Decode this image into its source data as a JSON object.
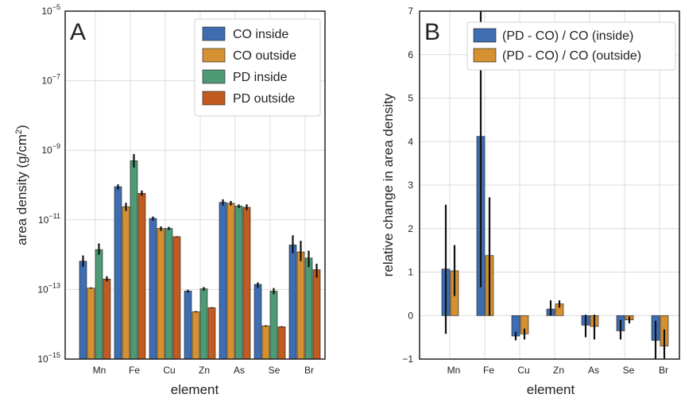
{
  "chart_data": [
    {
      "panel": "A",
      "type": "bar",
      "scale": "log",
      "categories": [
        "Mn",
        "Fe",
        "Cu",
        "Zn",
        "As",
        "Se",
        "Br"
      ],
      "ylabel_main": "area density (g/cm",
      "ylabel_sup": "2",
      "ylabel_close": ")",
      "xlabel": "element",
      "ylim_exp": [
        -15,
        -5
      ],
      "yticks_exp": [
        -15,
        -13,
        -11,
        -9,
        -7,
        -5
      ],
      "legend_position": "upper right",
      "grid": true,
      "series": [
        {
          "name": "CO inside",
          "color": "#3e6db2",
          "values": [
            6.5e-13,
            9e-11,
            1.1e-11,
            9e-14,
            3.2e-11,
            1.4e-13,
            1.9e-12
          ],
          "err_low": [
            4.5e-13,
            7.5e-11,
            9.5e-12,
            8.2e-14,
            2.6e-11,
            1.1e-13,
            1.1e-12
          ],
          "err_high": [
            9.5e-13,
            1.05e-10,
            1.25e-11,
            9.8e-14,
            3.9e-11,
            1.6e-13,
            3.6e-12
          ]
        },
        {
          "name": "CO outside",
          "color": "#d49031",
          "values": [
            1.1e-13,
            2.4e-11,
            5.7e-12,
            2.3e-14,
            3e-11,
            9e-15,
            1.2e-12
          ],
          "err_low": [
            1.05e-13,
            1.8e-11,
            4.8e-12,
            2.2e-14,
            2.6e-11,
            8.6e-15,
            6.5e-13
          ],
          "err_high": [
            1.15e-13,
            3.1e-11,
            6.5e-12,
            2.4e-14,
            3.5e-11,
            9.4e-15,
            2.5e-12
          ]
        },
        {
          "name": "PD inside",
          "color": "#4e9a74",
          "values": [
            1.4e-12,
            5e-10,
            5.7e-12,
            1.05e-13,
            2.5e-11,
            9e-14,
            8e-13
          ],
          "err_low": [
            1e-12,
            3.2e-10,
            5.1e-12,
            9.2e-14,
            2.2e-11,
            7.3e-14,
            4.4e-13
          ],
          "err_high": [
            2.1e-12,
            7.8e-10,
            6.3e-12,
            1.18e-13,
            2.8e-11,
            1.1e-13,
            1.3e-12
          ]
        },
        {
          "name": "PD outside",
          "color": "#c25b1f",
          "values": [
            2e-13,
            5.8e-11,
            3.3e-12,
            3e-14,
            2.3e-11,
            8.5e-15,
            3.7e-13
          ],
          "err_low": [
            1.7e-13,
            4.9e-11,
            3.2e-12,
            2.9e-14,
            1.9e-11,
            8.2e-15,
            2.2e-13
          ],
          "err_high": [
            2.4e-13,
            7e-11,
            3.4e-12,
            3.1e-14,
            2.8e-11,
            8.8e-15,
            5.5e-13
          ]
        }
      ]
    },
    {
      "panel": "B",
      "type": "bar",
      "scale": "linear",
      "categories": [
        "Mn",
        "Fe",
        "Cu",
        "Zn",
        "As",
        "Se",
        "Br"
      ],
      "ylabel": "relative change in area density",
      "xlabel": "element",
      "ylim": [
        -1,
        7
      ],
      "yticks": [
        -1,
        0,
        1,
        2,
        3,
        4,
        5,
        6,
        7
      ],
      "legend_position": "upper right",
      "grid": true,
      "series": [
        {
          "name": "(PD - CO) / CO (inside)",
          "color": "#3e6db2",
          "values": [
            1.07,
            4.12,
            -0.47,
            0.15,
            -0.22,
            -0.35,
            -0.57
          ],
          "err_low": [
            -0.42,
            0.65,
            -0.57,
            0.0,
            -0.5,
            -0.55,
            -1.0
          ],
          "err_high": [
            2.55,
            7.0,
            -0.37,
            0.35,
            0.02,
            -0.1,
            -0.12
          ]
        },
        {
          "name": "(PD - CO) / CO (outside)",
          "color": "#d49031",
          "values": [
            1.03,
            1.38,
            -0.42,
            0.27,
            -0.25,
            -0.1,
            -0.7
          ],
          "err_low": [
            0.45,
            0.0,
            -0.55,
            0.18,
            -0.55,
            -0.18,
            -1.0
          ],
          "err_high": [
            1.62,
            2.72,
            -0.3,
            0.35,
            0.02,
            -0.02,
            -0.32
          ]
        }
      ]
    }
  ]
}
